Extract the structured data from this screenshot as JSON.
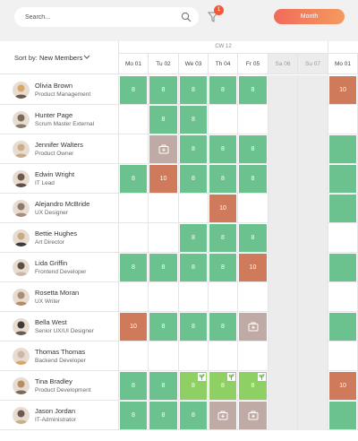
{
  "search": {
    "placeholder": "Search..."
  },
  "filter": {
    "badge": "1"
  },
  "month_button": "Month",
  "sort": {
    "label": "Sort by:",
    "value": "New Members"
  },
  "week": {
    "label": "CW 12"
  },
  "days": [
    "Mo 01",
    "Tu 02",
    "We 03",
    "Th 04",
    "Fr 05",
    "Sa 06",
    "Su 07",
    "Mo 01"
  ],
  "colors": {
    "green": "#6cc28e",
    "light_green": "#8ed064",
    "orange": "#cf7a5b",
    "grey": "#bfaaa5",
    "accent": "#f26b5b"
  },
  "people": [
    {
      "name": "Olivia Brown",
      "role": "Product Management",
      "cells": [
        "g:8",
        "g:8",
        "g:8",
        "g:8",
        "g:8",
        "",
        "",
        "o:10"
      ]
    },
    {
      "name": "Hunter Page",
      "role": "Scrum Master External",
      "cells": [
        "",
        "g:8",
        "g:8",
        "",
        "",
        "",
        "",
        ""
      ]
    },
    {
      "name": "Jennifer Walters",
      "role": "Product Owner",
      "cells": [
        "",
        "gr:medical",
        "g:8",
        "g:8",
        "g:8",
        "",
        "",
        "g:"
      ]
    },
    {
      "name": "Edwin Wright",
      "role": "IT Lead",
      "cells": [
        "g:8",
        "o:10",
        "g:8",
        "g:8",
        "g:8",
        "",
        "",
        "g:"
      ]
    },
    {
      "name": "Alejandro McBride",
      "role": "UX Designer",
      "cells": [
        "",
        "",
        "",
        "o:10",
        "",
        "",
        "",
        "g:"
      ]
    },
    {
      "name": "Bettie Hughes",
      "role": "Art Director",
      "cells": [
        "",
        "",
        "g:8",
        "g:8",
        "g:8",
        "",
        "",
        ""
      ]
    },
    {
      "name": "Lida Griffin",
      "role": "Frontend Developer",
      "cells": [
        "g:8",
        "g:8",
        "g:8",
        "g:8",
        "o:10",
        "",
        "",
        "g:"
      ]
    },
    {
      "name": "Rosetta Moran",
      "role": "UX Writer",
      "cells": [
        "",
        "",
        "",
        "",
        "",
        "",
        "",
        ""
      ]
    },
    {
      "name": "Bella West",
      "role": "Senior UX/UI Designer",
      "cells": [
        "o:10",
        "g:8",
        "g:8",
        "g:8",
        "gr:medical",
        "",
        "",
        "g:"
      ]
    },
    {
      "name": "Thomas Thomas",
      "role": "Backend Developer",
      "cells": [
        "",
        "",
        "",
        "",
        "",
        "",
        "",
        ""
      ]
    },
    {
      "name": "Tina Bradley",
      "role": "Product Development",
      "cells": [
        "g:8",
        "g:8",
        "lg:8*",
        "lg:8*",
        "lg:8*",
        "",
        "",
        "o:10"
      ]
    },
    {
      "name": "Jason Jordan",
      "role": "IT-Administrator",
      "cells": [
        "g:8",
        "g:8",
        "g:8",
        "gr:medical",
        "gr:medical",
        "",
        "",
        "g:"
      ]
    }
  ]
}
